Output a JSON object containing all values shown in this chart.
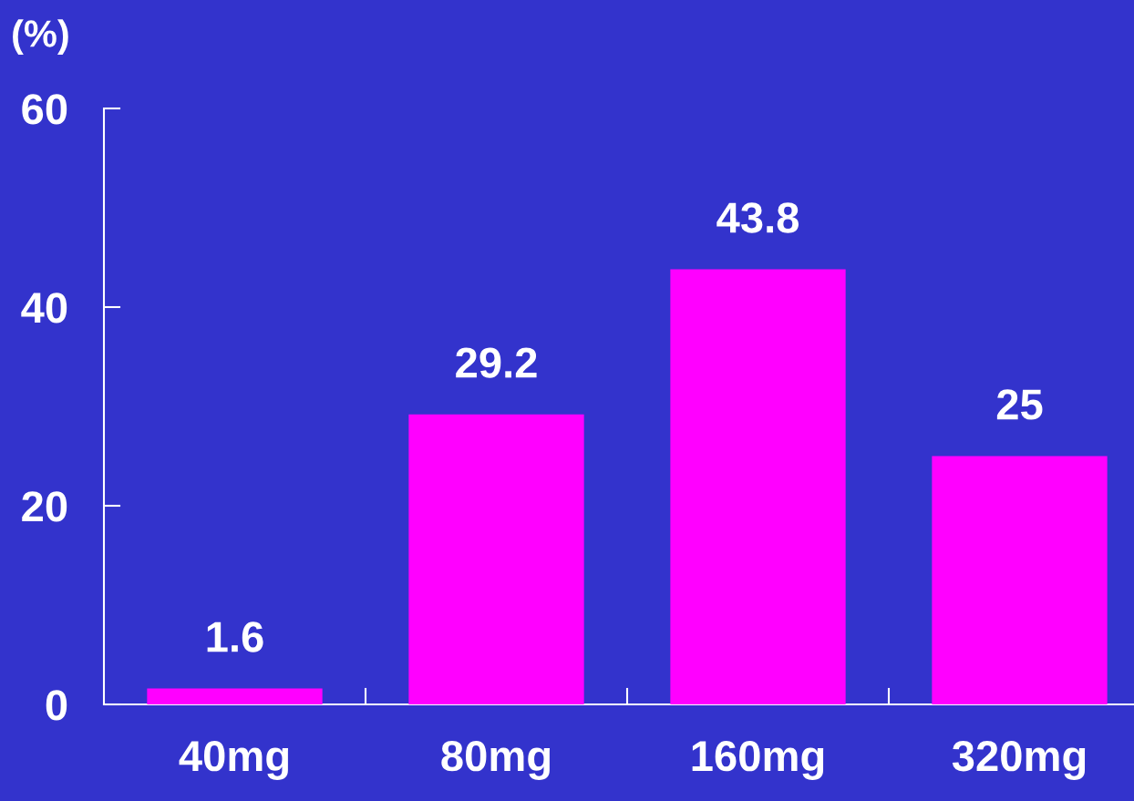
{
  "chart_data": {
    "type": "bar",
    "ylabel": "(%)",
    "categories": [
      "40mg",
      "80mg",
      "160mg",
      "320mg"
    ],
    "values": [
      1.6,
      29.2,
      43.8,
      25
    ],
    "color": "#ff00ff",
    "ylim": [
      0,
      60
    ],
    "yticks": [
      0,
      20,
      40,
      60
    ],
    "data_labels": true,
    "grid": false,
    "legend": false
  }
}
